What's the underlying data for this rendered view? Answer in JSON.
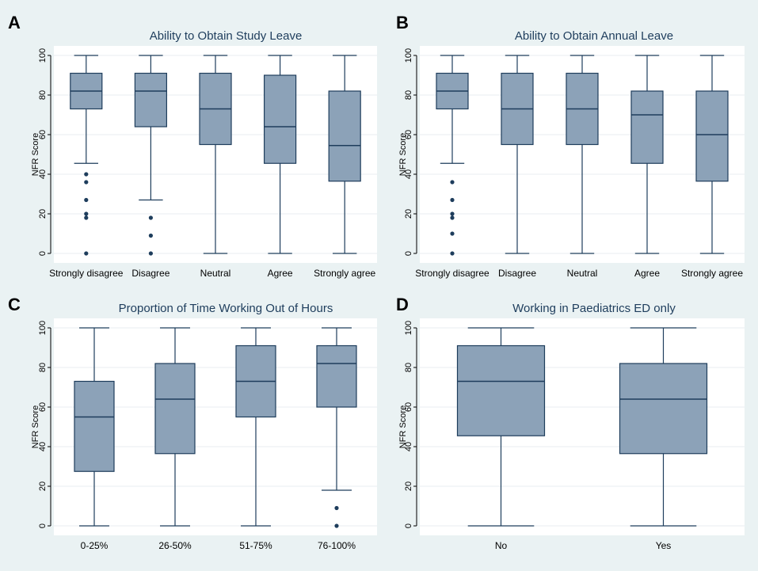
{
  "chart_data": [
    {
      "panel_label": "A",
      "type": "box",
      "title": "Ability to Obtain Study Leave",
      "ylabel": "NFR Score",
      "ylim": [
        0,
        100
      ],
      "yticks": [
        0,
        20,
        40,
        60,
        80,
        100
      ],
      "categories": [
        "Strongly disagree",
        "Disagree",
        "Neutral",
        "Agree",
        "Strongly agree"
      ],
      "boxes": [
        {
          "min": 45.5,
          "q1": 73,
          "median": 82,
          "q3": 91,
          "max": 100,
          "outliers": [
            0,
            18,
            20,
            27,
            36,
            40
          ]
        },
        {
          "min": 27,
          "q1": 64,
          "median": 82,
          "q3": 91,
          "max": 100,
          "outliers": [
            0,
            9,
            18
          ]
        },
        {
          "min": 0,
          "q1": 55,
          "median": 73,
          "q3": 91,
          "max": 100,
          "outliers": []
        },
        {
          "min": 0,
          "q1": 45.5,
          "median": 64,
          "q3": 90,
          "max": 100,
          "outliers": []
        },
        {
          "min": 0,
          "q1": 36.5,
          "median": 54.5,
          "q3": 82,
          "max": 100,
          "outliers": []
        }
      ]
    },
    {
      "panel_label": "B",
      "type": "box",
      "title": "Ability to Obtain Annual Leave",
      "ylabel": "NFR Score",
      "ylim": [
        0,
        100
      ],
      "yticks": [
        0,
        20,
        40,
        60,
        80,
        100
      ],
      "categories": [
        "Strongly disagree",
        "Disagree",
        "Neutral",
        "Agree",
        "Strongly agree"
      ],
      "boxes": [
        {
          "min": 45.5,
          "q1": 73,
          "median": 82,
          "q3": 91,
          "max": 100,
          "outliers": [
            0,
            10,
            18,
            20,
            27,
            36
          ]
        },
        {
          "min": 0,
          "q1": 55,
          "median": 73,
          "q3": 91,
          "max": 100,
          "outliers": []
        },
        {
          "min": 0,
          "q1": 55,
          "median": 73,
          "q3": 91,
          "max": 100,
          "outliers": []
        },
        {
          "min": 0,
          "q1": 45.5,
          "median": 70,
          "q3": 82,
          "max": 100,
          "outliers": []
        },
        {
          "min": 0,
          "q1": 36.5,
          "median": 60,
          "q3": 82,
          "max": 100,
          "outliers": []
        }
      ]
    },
    {
      "panel_label": "C",
      "type": "box",
      "title": "Proportion of Time Working Out of Hours",
      "ylabel": "NFR Score",
      "ylim": [
        0,
        100
      ],
      "yticks": [
        0,
        20,
        40,
        60,
        80,
        100
      ],
      "categories": [
        "0-25%",
        "26-50%",
        "51-75%",
        "76-100%"
      ],
      "boxes": [
        {
          "min": 0,
          "q1": 27.5,
          "median": 55,
          "q3": 73,
          "max": 100,
          "outliers": []
        },
        {
          "min": 0,
          "q1": 36.5,
          "median": 64,
          "q3": 82,
          "max": 100,
          "outliers": []
        },
        {
          "min": 0,
          "q1": 55,
          "median": 73,
          "q3": 91,
          "max": 100,
          "outliers": []
        },
        {
          "min": 18,
          "q1": 60,
          "median": 82,
          "q3": 91,
          "max": 100,
          "outliers": [
            0,
            9
          ]
        }
      ]
    },
    {
      "panel_label": "D",
      "type": "box",
      "title": "Working in Paediatrics ED only",
      "ylabel": "NFR Score",
      "ylim": [
        0,
        100
      ],
      "yticks": [
        0,
        20,
        40,
        60,
        80,
        100
      ],
      "categories": [
        "No",
        "Yes"
      ],
      "boxes": [
        {
          "min": 0,
          "q1": 45.5,
          "median": 73,
          "q3": 91,
          "max": 100,
          "outliers": []
        },
        {
          "min": 0,
          "q1": 36.5,
          "median": 64,
          "q3": 82,
          "max": 100,
          "outliers": []
        }
      ]
    }
  ],
  "colors": {
    "figure_background": "#eaf2f3",
    "plot_background": "#ffffff",
    "gridline": "#e8eef1",
    "box_fill": "#8ca2b8",
    "box_stroke": "#1e3d5c",
    "title_text": "#1e3d5c",
    "axis_text": "#000000"
  }
}
